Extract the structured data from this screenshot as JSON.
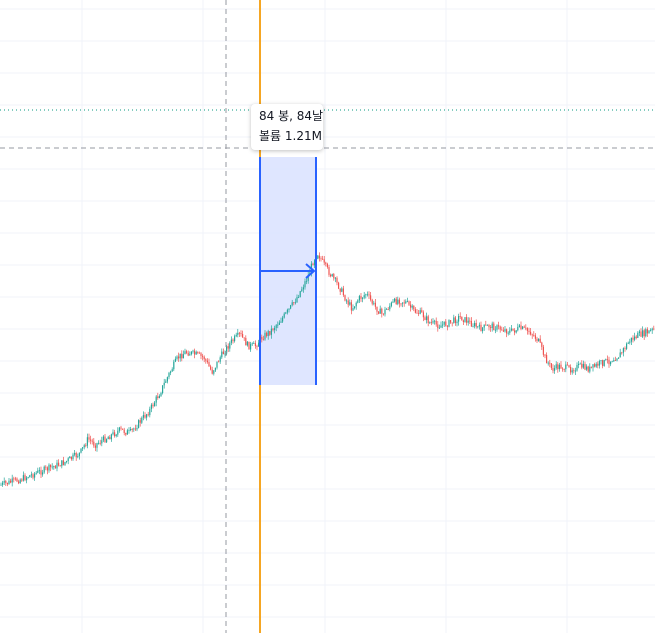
{
  "measure_tooltip": {
    "bars_days": "84 봉, 84날",
    "volume": "볼륨 1.21M"
  },
  "colors": {
    "grid": "#f0f3fa",
    "up_candle": "#26a69a",
    "down_candle": "#ef5350",
    "measure_fill": "#dbe3ff",
    "measure_stroke": "#2962ff",
    "vertical_marker": "#f5a623",
    "crosshair": "#9598a1",
    "price_line": "#089981"
  },
  "chart_data": {
    "type": "candlestick",
    "title": "",
    "xlabel": "",
    "ylabel": "",
    "series_shape": [
      [
        0,
        88
      ],
      [
        10,
        87
      ],
      [
        20,
        86
      ],
      [
        35,
        84
      ],
      [
        50,
        82
      ],
      [
        65,
        80
      ],
      [
        80,
        77
      ],
      [
        88,
        72
      ],
      [
        95,
        74
      ],
      [
        105,
        72
      ],
      [
        120,
        69
      ],
      [
        130,
        70
      ],
      [
        140,
        66
      ],
      [
        150,
        62
      ],
      [
        160,
        56
      ],
      [
        170,
        49
      ],
      [
        178,
        44
      ],
      [
        186,
        42
      ],
      [
        196,
        43
      ],
      [
        204,
        44
      ],
      [
        212,
        49
      ],
      [
        220,
        44
      ],
      [
        230,
        39
      ],
      [
        240,
        36
      ],
      [
        248,
        40
      ],
      [
        255,
        40
      ],
      [
        262,
        37
      ],
      [
        270,
        35
      ],
      [
        278,
        32
      ],
      [
        286,
        29
      ],
      [
        294,
        25
      ],
      [
        302,
        20
      ],
      [
        308,
        16
      ],
      [
        314,
        10
      ],
      [
        318,
        8
      ],
      [
        324,
        12
      ],
      [
        332,
        16
      ],
      [
        340,
        20
      ],
      [
        346,
        24
      ],
      [
        352,
        27
      ],
      [
        358,
        24
      ],
      [
        366,
        22
      ],
      [
        374,
        26
      ],
      [
        382,
        29
      ],
      [
        390,
        26
      ],
      [
        398,
        24
      ],
      [
        406,
        25
      ],
      [
        414,
        28
      ],
      [
        422,
        29
      ],
      [
        430,
        32
      ],
      [
        440,
        33
      ],
      [
        450,
        32
      ],
      [
        460,
        30
      ],
      [
        470,
        32
      ],
      [
        480,
        34
      ],
      [
        490,
        33
      ],
      [
        500,
        34
      ],
      [
        510,
        35
      ],
      [
        520,
        34
      ],
      [
        530,
        35
      ],
      [
        538,
        38
      ],
      [
        545,
        44
      ],
      [
        552,
        48
      ],
      [
        560,
        47
      ],
      [
        570,
        48
      ],
      [
        580,
        47
      ],
      [
        590,
        48
      ],
      [
        600,
        46
      ],
      [
        610,
        45
      ],
      [
        620,
        43
      ],
      [
        630,
        38
      ],
      [
        640,
        36
      ],
      [
        650,
        35
      ],
      [
        655,
        34
      ]
    ],
    "measure_range_bars": 84,
    "measure_range_days": 84,
    "measure_volume": "1.21M"
  }
}
